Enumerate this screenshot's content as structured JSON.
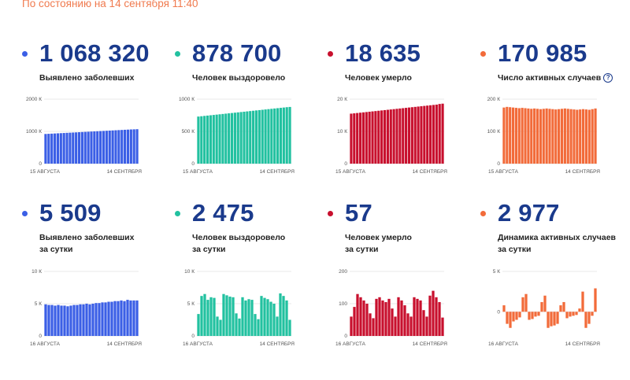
{
  "header": {
    "status": "По состоянию на 14 сентября 11:40"
  },
  "cards": [
    {
      "value": "1 068 320",
      "label1": "Выявлено заболевших",
      "label2": "",
      "color": "#3b5fe6",
      "chart_data": {
        "type": "bar",
        "ylim": [
          0,
          2000
        ],
        "yticks": [
          "0",
          "1000 К",
          "2000 К"
        ],
        "ytick_values": [
          0,
          1000,
          2000
        ],
        "xlabel_start": "15 АВГУСТА",
        "xlabel_end": "14 СЕНТЯБРЯ",
        "values": [
          920,
          925,
          930,
          935,
          940,
          945,
          950,
          955,
          960,
          965,
          970,
          975,
          980,
          985,
          990,
          995,
          1000,
          1005,
          1010,
          1015,
          1020,
          1025,
          1030,
          1035,
          1040,
          1045,
          1050,
          1055,
          1060,
          1064,
          1068
        ]
      }
    },
    {
      "value": "878 700",
      "label1": "Человек выздоровело",
      "label2": "",
      "color": "#22c1a0",
      "chart_data": {
        "type": "bar",
        "ylim": [
          0,
          1000
        ],
        "yticks": [
          "0",
          "500 К",
          "1000 К"
        ],
        "ytick_values": [
          0,
          500,
          1000
        ],
        "xlabel_start": "15 АВГУСТА",
        "xlabel_end": "14 СЕНТЯБРЯ",
        "values": [
          730,
          735,
          740,
          745,
          750,
          755,
          760,
          765,
          770,
          775,
          780,
          785,
          790,
          795,
          800,
          805,
          810,
          815,
          820,
          825,
          830,
          835,
          840,
          845,
          850,
          855,
          860,
          865,
          870,
          875,
          879
        ]
      }
    },
    {
      "value": "18 635",
      "label1": "Человек умерло",
      "label2": "",
      "color": "#c8102e",
      "chart_data": {
        "type": "bar",
        "ylim": [
          0,
          20
        ],
        "yticks": [
          "0",
          "10 К",
          "20 К"
        ],
        "ytick_values": [
          0,
          10,
          20
        ],
        "xlabel_start": "15 АВГУСТА",
        "xlabel_end": "14 СЕНТЯБРЯ",
        "values": [
          15.5,
          15.6,
          15.7,
          15.8,
          15.9,
          16.0,
          16.1,
          16.2,
          16.3,
          16.4,
          16.5,
          16.6,
          16.7,
          16.8,
          16.9,
          17.0,
          17.1,
          17.2,
          17.3,
          17.4,
          17.5,
          17.6,
          17.7,
          17.8,
          17.9,
          18.0,
          18.1,
          18.2,
          18.3,
          18.5,
          18.6
        ]
      }
    },
    {
      "value": "170 985",
      "label1": "Число активных случаев",
      "label2": "",
      "color": "#f26b3a",
      "help_icon": "?",
      "chart_data": {
        "type": "bar",
        "ylim": [
          0,
          200
        ],
        "yticks": [
          "0",
          "100 К",
          "200 К"
        ],
        "ytick_values": [
          0,
          100,
          200
        ],
        "xlabel_start": "15 АВГУСТА",
        "xlabel_end": "14 СЕНТЯБРЯ",
        "values": [
          174,
          176,
          175,
          174,
          173,
          172,
          173,
          172,
          171,
          170,
          171,
          170,
          169,
          170,
          171,
          170,
          169,
          168,
          169,
          170,
          171,
          170,
          169,
          168,
          167,
          168,
          169,
          168,
          167,
          169,
          171
        ]
      }
    },
    {
      "value": "5 509",
      "label1": "Выявлено заболевших",
      "label2": "за сутки",
      "color": "#3b5fe6",
      "chart_data": {
        "type": "bar",
        "ylim": [
          0,
          10
        ],
        "yticks": [
          "0",
          "5 К",
          "10 К"
        ],
        "ytick_values": [
          0,
          5,
          10
        ],
        "xlabel_start": "16 АВГУСТА",
        "xlabel_end": "14 СЕНТЯБРЯ",
        "values": [
          4.9,
          4.8,
          4.8,
          4.7,
          4.8,
          4.7,
          4.7,
          4.6,
          4.7,
          4.8,
          4.8,
          4.9,
          4.9,
          5.0,
          4.9,
          5.0,
          5.1,
          5.1,
          5.2,
          5.2,
          5.3,
          5.3,
          5.4,
          5.4,
          5.5,
          5.4,
          5.6,
          5.5,
          5.5,
          5.5
        ]
      }
    },
    {
      "value": "2 475",
      "label1": "Человек выздоровело",
      "label2": "за сутки",
      "color": "#22c1a0",
      "chart_data": {
        "type": "bar",
        "ylim": [
          0,
          10
        ],
        "yticks": [
          "0",
          "5 К",
          "10 К"
        ],
        "ytick_values": [
          0,
          5,
          10
        ],
        "xlabel_start": "16 АВГУСТА",
        "xlabel_end": "14 СЕНТЯБРЯ",
        "values": [
          3.4,
          6.2,
          6.5,
          5.6,
          6.0,
          5.9,
          3.0,
          2.5,
          6.5,
          6.3,
          6.1,
          6.0,
          3.5,
          2.7,
          6.0,
          5.5,
          5.7,
          5.6,
          3.4,
          2.6,
          6.2,
          5.9,
          5.7,
          5.3,
          5.0,
          3.0,
          6.6,
          6.2,
          5.5,
          2.5
        ]
      }
    },
    {
      "value": "57",
      "label1": "Человек умерло",
      "label2": "за сутки",
      "color": "#c8102e",
      "chart_data": {
        "type": "bar",
        "ylim": [
          0,
          200
        ],
        "yticks": [
          "0",
          "100",
          "200"
        ],
        "ytick_values": [
          0,
          100,
          200
        ],
        "xlabel_start": "16 АВГУСТА",
        "xlabel_end": "14 СЕНТЯБРЯ",
        "values": [
          60,
          90,
          130,
          120,
          110,
          100,
          70,
          55,
          115,
          120,
          110,
          105,
          115,
          85,
          60,
          120,
          110,
          95,
          70,
          60,
          120,
          115,
          110,
          80,
          60,
          125,
          140,
          120,
          105,
          57
        ]
      }
    },
    {
      "value": "2 977",
      "label1": "Динамика активных случаев",
      "label2": "за сутки",
      "color": "#f26b3a",
      "chart_data": {
        "type": "bar",
        "ylim": [
          -3,
          5
        ],
        "yticks": [
          "0",
          "5 К"
        ],
        "ytick_values": [
          0,
          5
        ],
        "xlabel_start": "16 АВГУСТА",
        "xlabel_end": "14 СЕНТЯБРЯ",
        "values": [
          0.8,
          -1.5,
          -2.0,
          -1.2,
          -1.0,
          -0.7,
          1.8,
          2.2,
          -1.0,
          -0.9,
          -0.6,
          -0.5,
          1.2,
          2.0,
          -2.0,
          -1.8,
          -1.7,
          -1.5,
          0.8,
          1.2,
          -0.8,
          -0.6,
          -0.5,
          -0.4,
          0.4,
          2.5,
          -2.0,
          -1.5,
          -0.5,
          2.9
        ]
      }
    }
  ]
}
